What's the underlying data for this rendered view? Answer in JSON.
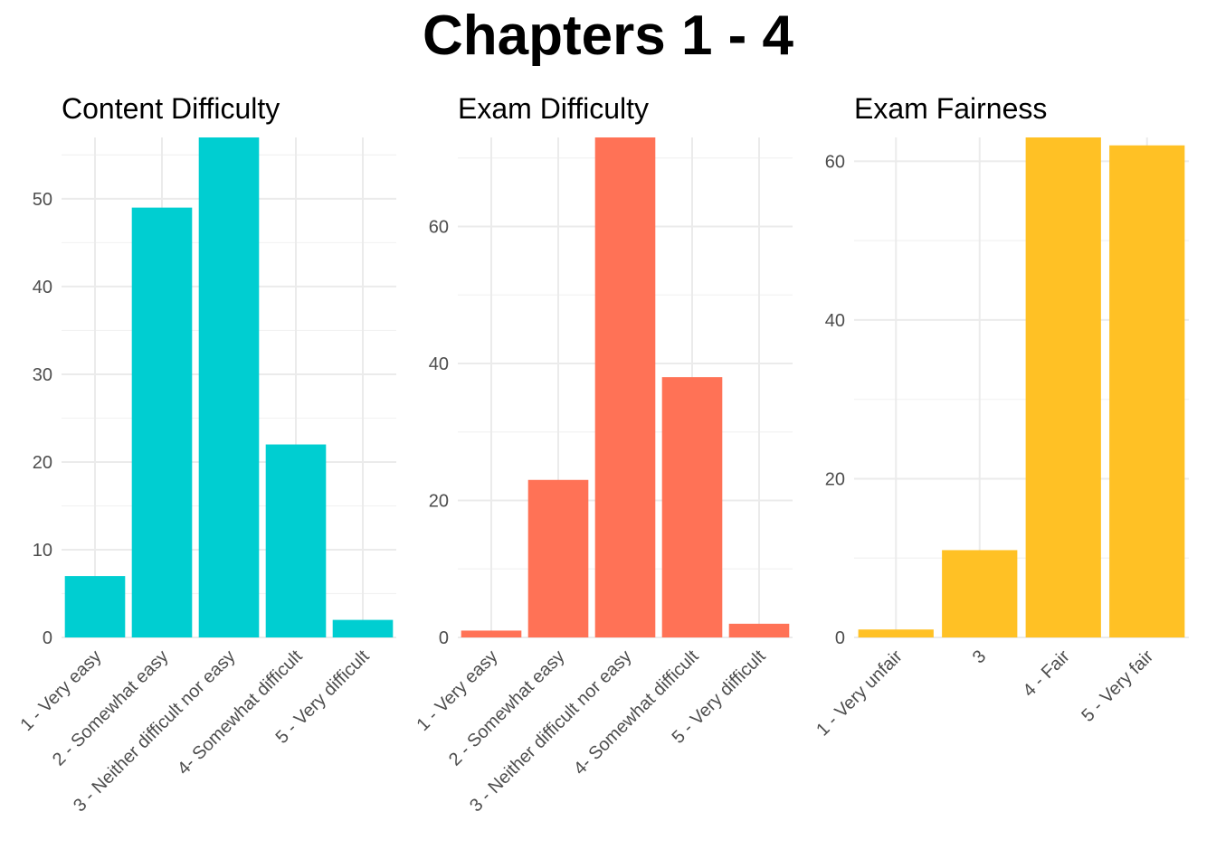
{
  "title": "Chapters 1 - 4",
  "chart_data": [
    {
      "type": "bar",
      "title": "Content Difficulty",
      "categories": [
        "1 - Very easy",
        "2 - Somewhat easy",
        "3 - Neither difficult nor easy",
        "4- Somewhat difficult",
        "5 - Very difficult"
      ],
      "values": [
        7,
        49,
        57,
        22,
        2
      ],
      "color": "#00CED1",
      "ylim": [
        0,
        57
      ],
      "yticks": [
        0,
        10,
        20,
        30,
        40,
        50
      ],
      "grid": true
    },
    {
      "type": "bar",
      "title": "Exam Difficulty",
      "categories": [
        "1 - Very easy",
        "2 - Somewhat easy",
        "3 - Neither difficult nor easy",
        "4- Somewhat difficult",
        "5 - Very difficult"
      ],
      "values": [
        1,
        23,
        73,
        38,
        2
      ],
      "color": "#FF7256",
      "ylim": [
        0,
        73
      ],
      "yticks": [
        0,
        20,
        40,
        60
      ],
      "grid": true
    },
    {
      "type": "bar",
      "title": "Exam Fairness",
      "categories": [
        "1 - Very unfair",
        "3",
        "4 - Fair",
        "5 - Very fair"
      ],
      "values": [
        1,
        11,
        63,
        62
      ],
      "color": "#FFC125",
      "ylim": [
        0,
        63
      ],
      "yticks": [
        0,
        20,
        40,
        60
      ],
      "grid": true
    }
  ]
}
